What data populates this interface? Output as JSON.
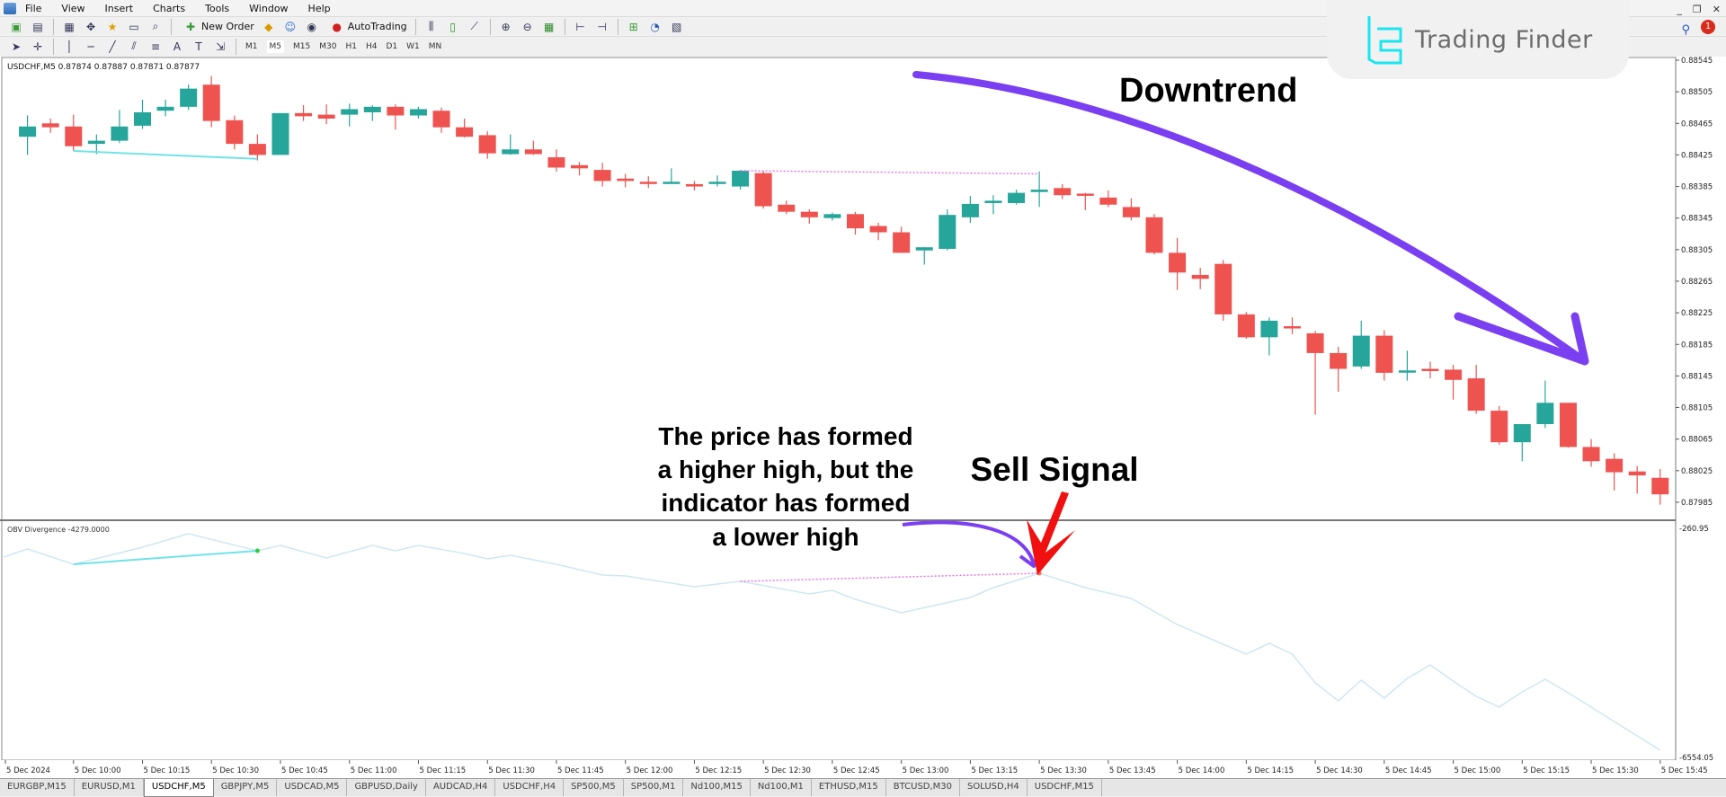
{
  "menu": [
    "File",
    "View",
    "Insert",
    "Charts",
    "Tools",
    "Window",
    "Help"
  ],
  "toolbar": {
    "new_order": "New Order",
    "autotrading": "AutoTrading",
    "timeframes": [
      "M1",
      "M5",
      "M15",
      "M30",
      "H1",
      "H4",
      "D1",
      "W1",
      "MN"
    ],
    "active_timeframe": "M5"
  },
  "logo": {
    "text": "Trading Finder",
    "color": "#19e6f0"
  },
  "notification_count": "1",
  "chart": {
    "header": "USDCHF,M5  0.87874 0.87887 0.87871 0.87877",
    "indicator_header": "OBV Divergence -4279.0000",
    "bull_color": "#26a69a",
    "bear_color": "#ef5350",
    "price_ticks": [
      "0.88545",
      "0.88505",
      "0.88465",
      "0.88425",
      "0.88385",
      "0.88345",
      "0.88305",
      "0.88265",
      "0.88225",
      "0.88185",
      "0.88145",
      "0.88105",
      "0.88065",
      "0.88025",
      "0.87985"
    ],
    "obv_ticks": [
      "-260.95",
      "-6554.05"
    ],
    "time_labels": [
      "5 Dec 2024",
      "5 Dec 10:00",
      "5 Dec 10:15",
      "5 Dec 10:30",
      "5 Dec 10:45",
      "5 Dec 11:00",
      "5 Dec 11:15",
      "5 Dec 11:30",
      "5 Dec 11:45",
      "5 Dec 12:00",
      "5 Dec 12:15",
      "5 Dec 12:30",
      "5 Dec 12:45",
      "5 Dec 13:00",
      "5 Dec 13:15",
      "5 Dec 13:30",
      "5 Dec 13:45",
      "5 Dec 14:00",
      "5 Dec 14:15",
      "5 Dec 14:30",
      "5 Dec 14:45",
      "5 Dec 15:00",
      "5 Dec 15:15",
      "5 Dec 15:30",
      "5 Dec 15:45"
    ]
  },
  "chart_data": {
    "type": "candlestick",
    "symbol": "USDCHF,M5",
    "ylim": [
      0.87985,
      0.88545
    ],
    "candles_ohlc": [
      [
        "09:50",
        0.88448,
        0.88475,
        0.88425,
        0.88461
      ],
      [
        "09:55",
        0.88465,
        0.88471,
        0.88453,
        0.8846
      ],
      [
        "10:00",
        0.88461,
        0.88476,
        0.8843,
        0.88436
      ],
      [
        "10:05",
        0.88439,
        0.88451,
        0.88426,
        0.88443
      ],
      [
        "10:10",
        0.88443,
        0.88482,
        0.8844,
        0.88461
      ],
      [
        "10:15",
        0.88462,
        0.88495,
        0.88458,
        0.88479
      ],
      [
        "10:20",
        0.88481,
        0.88495,
        0.88474,
        0.88486
      ],
      [
        "10:25",
        0.88486,
        0.88514,
        0.88482,
        0.88509
      ],
      [
        "10:30",
        0.88514,
        0.88525,
        0.8846,
        0.88468
      ],
      [
        "10:35",
        0.88469,
        0.88475,
        0.88432,
        0.88439
      ],
      [
        "10:40",
        0.88439,
        0.88451,
        0.88418,
        0.88425
      ],
      [
        "10:45",
        0.88425,
        0.88478,
        0.88425,
        0.88478
      ],
      [
        "10:50",
        0.88478,
        0.88488,
        0.88468,
        0.88474
      ],
      [
        "10:55",
        0.88476,
        0.88489,
        0.88464,
        0.88471
      ],
      [
        "11:00",
        0.88476,
        0.8849,
        0.88461,
        0.88483
      ],
      [
        "11:05",
        0.88479,
        0.88488,
        0.88468,
        0.88486
      ],
      [
        "11:10",
        0.88486,
        0.88489,
        0.88457,
        0.88475
      ],
      [
        "11:15",
        0.88475,
        0.88486,
        0.88471,
        0.88483
      ],
      [
        "11:20",
        0.88481,
        0.88485,
        0.88453,
        0.8846
      ],
      [
        "11:25",
        0.8846,
        0.88471,
        0.88447,
        0.88448
      ],
      [
        "11:30",
        0.8845,
        0.88455,
        0.8842,
        0.88427
      ],
      [
        "11:35",
        0.88426,
        0.88451,
        0.88425,
        0.88432
      ],
      [
        "11:40",
        0.88432,
        0.88443,
        0.88425,
        0.88426
      ],
      [
        "11:45",
        0.88422,
        0.88432,
        0.88404,
        0.88409
      ],
      [
        "11:50",
        0.88412,
        0.88416,
        0.88399,
        0.88408
      ],
      [
        "11:55",
        0.88406,
        0.88415,
        0.88385,
        0.88392
      ],
      [
        "12:00",
        0.88395,
        0.88401,
        0.88384,
        0.88392
      ],
      [
        "12:05",
        0.88391,
        0.88398,
        0.88383,
        0.8839
      ],
      [
        "12:10",
        0.8839,
        0.88408,
        0.8839,
        0.88391
      ],
      [
        "12:15",
        0.88388,
        0.88392,
        0.8838,
        0.88385
      ],
      [
        "12:20",
        0.8839,
        0.88399,
        0.88385,
        0.88391
      ],
      [
        "12:25",
        0.88385,
        0.88406,
        0.88381,
        0.88405
      ],
      [
        "12:30",
        0.88402,
        0.88405,
        0.88357,
        0.8836
      ],
      [
        "12:35",
        0.88362,
        0.88367,
        0.8835,
        0.88353
      ],
      [
        "12:40",
        0.88353,
        0.88356,
        0.88338,
        0.88346
      ],
      [
        "12:45",
        0.88345,
        0.88352,
        0.88342,
        0.8835
      ],
      [
        "12:50",
        0.8835,
        0.88353,
        0.88324,
        0.88332
      ],
      [
        "12:55",
        0.88335,
        0.88339,
        0.88317,
        0.88327
      ],
      [
        "13:00",
        0.88327,
        0.88334,
        0.88301,
        0.88301
      ],
      [
        "13:05",
        0.88304,
        0.88308,
        0.88286,
        0.88308
      ],
      [
        "13:10",
        0.88306,
        0.88356,
        0.88304,
        0.88349
      ],
      [
        "13:15",
        0.88346,
        0.88373,
        0.88339,
        0.88363
      ],
      [
        "13:20",
        0.88364,
        0.88374,
        0.8835,
        0.88367
      ],
      [
        "13:25",
        0.88364,
        0.88381,
        0.88362,
        0.88377
      ],
      [
        "13:30",
        0.88378,
        0.88404,
        0.88359,
        0.88381
      ],
      [
        "13:35",
        0.88383,
        0.88388,
        0.88369,
        0.88374
      ],
      [
        "13:40",
        0.88376,
        0.88377,
        0.88355,
        0.88374
      ],
      [
        "13:45",
        0.88371,
        0.8838,
        0.88359,
        0.88362
      ],
      [
        "13:50",
        0.88359,
        0.8837,
        0.88342,
        0.88346
      ],
      [
        "13:55",
        0.88346,
        0.8835,
        0.88299,
        0.88301
      ],
      [
        "14:00",
        0.88301,
        0.8832,
        0.88254,
        0.88276
      ],
      [
        "14:05",
        0.88273,
        0.88282,
        0.88255,
        0.88268
      ],
      [
        "14:10",
        0.88287,
        0.88292,
        0.88215,
        0.88223
      ],
      [
        "14:15",
        0.88223,
        0.88226,
        0.88192,
        0.88194
      ],
      [
        "14:20",
        0.88194,
        0.88219,
        0.88171,
        0.88215
      ],
      [
        "14:25",
        0.88208,
        0.88219,
        0.88198,
        0.88206
      ],
      [
        "14:30",
        0.88199,
        0.88202,
        0.88096,
        0.88174
      ],
      [
        "14:35",
        0.88174,
        0.88182,
        0.88125,
        0.88154
      ],
      [
        "14:40",
        0.88157,
        0.88215,
        0.88154,
        0.88196
      ],
      [
        "14:45",
        0.88196,
        0.88203,
        0.88139,
        0.88149
      ],
      [
        "14:50",
        0.8815,
        0.88177,
        0.88139,
        0.88152
      ],
      [
        "14:55",
        0.88154,
        0.88163,
        0.88142,
        0.88152
      ],
      [
        "15:00",
        0.88153,
        0.88159,
        0.88115,
        0.8814
      ],
      [
        "15:05",
        0.88142,
        0.88159,
        0.88097,
        0.88101
      ],
      [
        "15:10",
        0.88101,
        0.88107,
        0.88058,
        0.88061
      ],
      [
        "15:15",
        0.88061,
        0.88084,
        0.88037,
        0.88084
      ],
      [
        "15:20",
        0.88084,
        0.88139,
        0.88079,
        0.88111
      ],
      [
        "15:25",
        0.88111,
        0.88111,
        0.88054,
        0.88055
      ],
      [
        "15:30",
        0.88055,
        0.88065,
        0.8803,
        0.88037
      ],
      [
        "15:35",
        0.8804,
        0.88047,
        0.88,
        0.88023
      ],
      [
        "15:40",
        0.88024,
        0.88031,
        0.87996,
        0.88019
      ],
      [
        "15:45",
        0.88016,
        0.88027,
        0.87982,
        0.87995
      ]
    ],
    "obv": {
      "ylim": [
        -6554.05,
        -260.95
      ],
      "color": "#cfe7f0",
      "points": [
        [
          "09:50",
          -828
        ],
        [
          "10:00",
          -1248
        ],
        [
          "10:15",
          -779
        ],
        [
          "10:25",
          -409
        ],
        [
          "10:40",
          -878
        ],
        [
          "10:45",
          -730
        ],
        [
          "10:55",
          -1075
        ],
        [
          "11:05",
          -730
        ],
        [
          "11:10",
          -878
        ],
        [
          "11:15",
          -730
        ],
        [
          "11:25",
          -952
        ],
        [
          "11:30",
          -1100
        ],
        [
          "11:35",
          -1001
        ],
        [
          "11:45",
          -1248
        ],
        [
          "11:55",
          -1544
        ],
        [
          "12:00",
          -1569
        ],
        [
          "12:15",
          -1865
        ],
        [
          "12:25",
          -1717
        ],
        [
          "12:40",
          -2063
        ],
        [
          "12:45",
          -1964
        ],
        [
          "12:50",
          -2211
        ],
        [
          "13:00",
          -2581
        ],
        [
          "13:15",
          -2161
        ],
        [
          "13:20",
          -1890
        ],
        [
          "13:30",
          -1495
        ],
        [
          "13:40",
          -1890
        ],
        [
          "13:50",
          -2186
        ],
        [
          "14:00",
          -2902
        ],
        [
          "14:15",
          -3716
        ],
        [
          "14:20",
          -3420
        ],
        [
          "14:25",
          -3716
        ],
        [
          "14:30",
          -4506
        ],
        [
          "14:35",
          -5000
        ],
        [
          "14:40",
          -4432
        ],
        [
          "14:45",
          -4925
        ],
        [
          "14:50",
          -4382
        ],
        [
          "14:55",
          -4012
        ],
        [
          "15:00",
          -4457
        ],
        [
          "15:05",
          -4876
        ],
        [
          "15:10",
          -5172
        ],
        [
          "15:15",
          -4753
        ],
        [
          "15:20",
          -4407
        ],
        [
          "15:25",
          -4777
        ],
        [
          "15:45",
          -6357
        ]
      ]
    },
    "divergences": [
      {
        "type": "bullish",
        "color": "#6fe3ea",
        "style": "solid",
        "price": [
          [
            "10:00",
            0.8843
          ],
          [
            "10:40",
            0.8842
          ]
        ],
        "obv": [
          [
            "10:00",
            -1248
          ],
          [
            "10:40",
            -878
          ]
        ]
      },
      {
        "type": "bearish",
        "color": "#e07ae0",
        "style": "dotted",
        "price": [
          [
            "12:25",
            0.88405
          ],
          [
            "13:30",
            0.88401
          ]
        ],
        "obv": [
          [
            "12:25",
            -1717
          ],
          [
            "13:30",
            -1495
          ]
        ]
      }
    ]
  },
  "annotations": {
    "downtrend": "Downtrend",
    "explanation": [
      "The price has formed",
      "a higher high, but the",
      "indicator has formed",
      "a lower high"
    ],
    "sell_signal": "Sell Signal",
    "arrow_color": "#7b3ff2",
    "signal_arrow_color": "#f01010"
  },
  "tabs": [
    {
      "label": "EURGBP,M15"
    },
    {
      "label": "EURUSD,M1"
    },
    {
      "label": "USDCHF,M5",
      "active": true
    },
    {
      "label": "GBPJPY,M5"
    },
    {
      "label": "USDCAD,M5"
    },
    {
      "label": "GBPUSD,Daily"
    },
    {
      "label": "AUDCAD,H4"
    },
    {
      "label": "USDCHF,H4"
    },
    {
      "label": "SP500,M5"
    },
    {
      "label": "SP500,M1"
    },
    {
      "label": "Nd100,M15"
    },
    {
      "label": "Nd100,M1"
    },
    {
      "label": "ETHUSD,M15"
    },
    {
      "label": "BTCUSD,M30"
    },
    {
      "label": "SOLUSD,H4"
    },
    {
      "label": "USDCHF,M15"
    }
  ]
}
